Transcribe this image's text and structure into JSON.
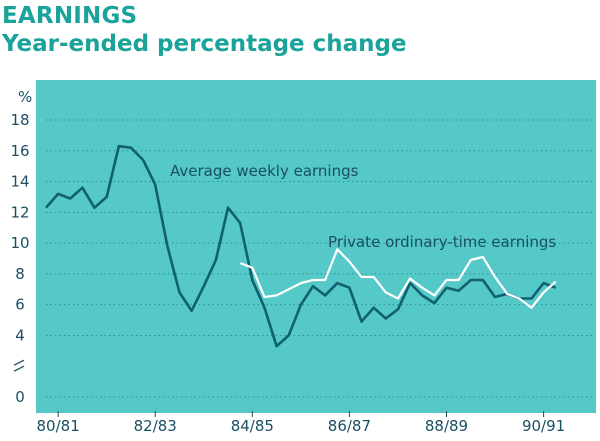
{
  "header": {
    "title": "EARNINGS",
    "subtitle": "Year-ended percentage change"
  },
  "colors": {
    "panel": "#55c8c8",
    "grid": "#2e8f94",
    "awe_line": "#10606e",
    "pote_line": "#ffffff",
    "text": "#1a4f63",
    "title": "#1aa39a"
  },
  "chart_data": {
    "type": "line",
    "title": "EARNINGS",
    "subtitle": "Year-ended percentage change",
    "ylabel": "%",
    "ylim": [
      0,
      18
    ],
    "yticks": [
      0,
      4,
      6,
      8,
      10,
      12,
      14,
      16,
      18
    ],
    "axis_break": "between 0 and 4",
    "grid": "horizontal dotted",
    "xlim": [
      1980.5,
      1991.5
    ],
    "xticks": [
      {
        "label": "80/81",
        "x": 1980.75
      },
      {
        "label": "82/83",
        "x": 1982.75
      },
      {
        "label": "84/85",
        "x": 1984.75
      },
      {
        "label": "86/87",
        "x": 1986.75
      },
      {
        "label": "88/89",
        "x": 1988.75
      },
      {
        "label": "90/91",
        "x": 1990.75
      }
    ],
    "annotations": [
      {
        "text": "Average weekly earnings",
        "series": "awe"
      },
      {
        "text": "Private ordinary-time earnings",
        "series": "pote"
      }
    ],
    "series": [
      {
        "id": "awe",
        "name": "Average weekly earnings",
        "color": "#10606e",
        "points": [
          [
            1980.5,
            12.3
          ],
          [
            1980.75,
            13.2
          ],
          [
            1981.0,
            12.9
          ],
          [
            1981.25,
            13.6
          ],
          [
            1981.5,
            12.3
          ],
          [
            1981.75,
            13.0
          ],
          [
            1982.0,
            16.3
          ],
          [
            1982.25,
            16.2
          ],
          [
            1982.5,
            15.4
          ],
          [
            1982.75,
            13.8
          ],
          [
            1983.0,
            9.8
          ],
          [
            1983.25,
            6.8
          ],
          [
            1983.5,
            5.6
          ],
          [
            1983.75,
            7.2
          ],
          [
            1984.0,
            8.9
          ],
          [
            1984.25,
            12.3
          ],
          [
            1984.5,
            11.3
          ],
          [
            1984.75,
            7.6
          ],
          [
            1985.0,
            5.8
          ],
          [
            1985.25,
            3.3
          ],
          [
            1985.5,
            4.0
          ],
          [
            1985.75,
            6.0
          ],
          [
            1986.0,
            7.2
          ],
          [
            1986.25,
            6.6
          ],
          [
            1986.5,
            7.4
          ],
          [
            1986.75,
            7.1
          ],
          [
            1987.0,
            4.9
          ],
          [
            1987.25,
            5.8
          ],
          [
            1987.5,
            5.1
          ],
          [
            1987.75,
            5.7
          ],
          [
            1988.0,
            7.4
          ],
          [
            1988.25,
            6.6
          ],
          [
            1988.5,
            6.1
          ],
          [
            1988.75,
            7.1
          ],
          [
            1989.0,
            6.9
          ],
          [
            1989.25,
            7.6
          ],
          [
            1989.5,
            7.6
          ],
          [
            1989.75,
            6.5
          ],
          [
            1990.0,
            6.7
          ],
          [
            1990.25,
            6.4
          ],
          [
            1990.5,
            6.4
          ],
          [
            1990.75,
            7.4
          ],
          [
            1991.0,
            7.1
          ]
        ]
      },
      {
        "id": "pote",
        "name": "Private ordinary-time earnings",
        "color": "#ffffff",
        "points": [
          [
            1984.5,
            8.7
          ],
          [
            1984.75,
            8.4
          ],
          [
            1985.0,
            6.5
          ],
          [
            1985.25,
            6.6
          ],
          [
            1985.5,
            7.0
          ],
          [
            1985.75,
            7.4
          ],
          [
            1986.0,
            7.6
          ],
          [
            1986.25,
            7.6
          ],
          [
            1986.5,
            9.6
          ],
          [
            1986.75,
            8.8
          ],
          [
            1987.0,
            7.8
          ],
          [
            1987.25,
            7.8
          ],
          [
            1987.5,
            6.8
          ],
          [
            1987.75,
            6.4
          ],
          [
            1988.0,
            7.7
          ],
          [
            1988.25,
            7.1
          ],
          [
            1988.5,
            6.6
          ],
          [
            1988.75,
            7.6
          ],
          [
            1989.0,
            7.6
          ],
          [
            1989.25,
            8.9
          ],
          [
            1989.5,
            9.1
          ],
          [
            1989.75,
            7.8
          ],
          [
            1990.0,
            6.7
          ],
          [
            1990.25,
            6.4
          ],
          [
            1990.5,
            5.8
          ],
          [
            1990.75,
            6.8
          ],
          [
            1991.0,
            7.5
          ]
        ]
      }
    ]
  }
}
